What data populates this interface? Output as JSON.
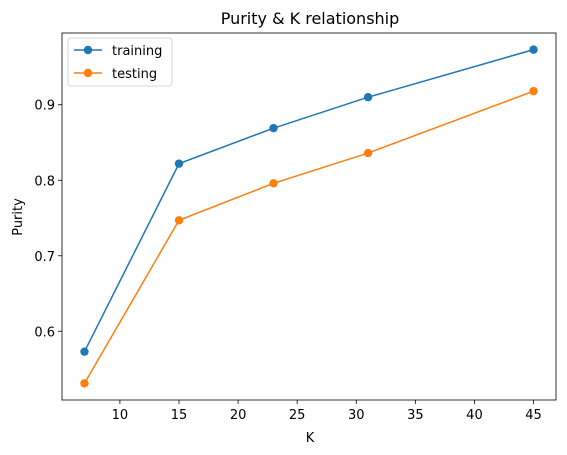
{
  "chart_data": {
    "type": "line",
    "title": "Purity & K relationship",
    "xlabel": "K",
    "ylabel": "Purity",
    "x": [
      7,
      15,
      23,
      31,
      45
    ],
    "series": [
      {
        "name": "training",
        "values": [
          0.573,
          0.822,
          0.869,
          0.91,
          0.973
        ],
        "color": "#1f77b4"
      },
      {
        "name": "testing",
        "values": [
          0.531,
          0.747,
          0.796,
          0.836,
          0.918
        ],
        "color": "#ff7f0e"
      }
    ],
    "xlim": [
      5.1,
      46.9
    ],
    "ylim": [
      0.509,
      0.995
    ],
    "xticks": [
      10,
      15,
      20,
      25,
      30,
      35,
      40,
      45
    ],
    "yticks": [
      0.6,
      0.7,
      0.8,
      0.9
    ],
    "xtick_labels": [
      "10",
      "15",
      "20",
      "25",
      "30",
      "35",
      "40",
      "45"
    ],
    "ytick_labels": [
      "0.6",
      "0.7",
      "0.8",
      "0.9"
    ],
    "grid": false,
    "legend_position": "upper-left"
  }
}
